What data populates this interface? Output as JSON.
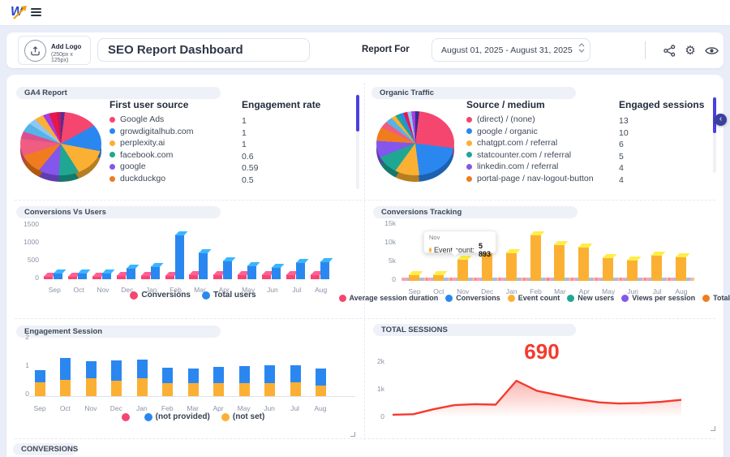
{
  "topbar": {
    "logo_letter": "W"
  },
  "header": {
    "add_logo": {
      "line1": "Add Logo",
      "line2": "(250px x 125px)"
    },
    "title_value": "SEO Report Dashboard",
    "report_for_label": "Report For",
    "date_range_value": "August 01, 2025 - August 31, 2025"
  },
  "theme": {
    "background": "#e9edf8",
    "accent_indigo": "#4a3fe0",
    "collapse_button": "#3b3f9d",
    "red_accent": "#f43b2e"
  },
  "panels": {
    "ga4": {
      "title": "GA4 Report",
      "col1_header": "First user source",
      "col2_header": "Engagement rate",
      "rows": [
        {
          "label": "Google Ads",
          "value": "1",
          "color": "#f5466f"
        },
        {
          "label": "growdigitalhub.com",
          "value": "1",
          "color": "#2b87f0"
        },
        {
          "label": "perplexity.ai",
          "value": "1",
          "color": "#fbb034"
        },
        {
          "label": "facebook.com",
          "value": "0.6",
          "color": "#1fa793"
        },
        {
          "label": "google",
          "value": "0.59",
          "color": "#8456ec"
        },
        {
          "label": "duckduckgo",
          "value": "0.5",
          "color": "#f07c1f"
        }
      ]
    },
    "organic": {
      "title": "Organic Traffic",
      "col1_header": "Source / medium",
      "col2_header": "Engaged sessions",
      "rows": [
        {
          "label": "(direct) / (none)",
          "value": "13",
          "color": "#f5466f"
        },
        {
          "label": "google / organic",
          "value": "10",
          "color": "#2b87f0"
        },
        {
          "label": "chatgpt.com / referral",
          "value": "6",
          "color": "#fbb034"
        },
        {
          "label": "statcounter.com / referral",
          "value": "5",
          "color": "#1fa793"
        },
        {
          "label": "linkedin.com / referral",
          "value": "4",
          "color": "#8456ec"
        },
        {
          "label": "portal-page / nav-logout-button",
          "value": "4",
          "color": "#f07c1f"
        }
      ]
    },
    "conversions_bottom": {
      "title": "CONVERSIONS"
    }
  },
  "chart_data": [
    {
      "id": "ga4_pie",
      "type": "pie",
      "title": "GA4 Report",
      "legend": [
        "Google Ads",
        "growdigitalhub.com",
        "perplexity.ai",
        "facebook.com",
        "google",
        "duckduckgo"
      ],
      "slices": [
        {
          "color": "#5b2d90",
          "pct": 2
        },
        {
          "color": "#f5466f",
          "pct": 15
        },
        {
          "color": "#2b87f0",
          "pct": 11
        },
        {
          "color": "#fbb034",
          "pct": 13
        },
        {
          "color": "#1fa793",
          "pct": 10
        },
        {
          "color": "#8456ec",
          "pct": 10
        },
        {
          "color": "#f07c1f",
          "pct": 9
        },
        {
          "color": "#ef5d80",
          "pct": 7
        },
        {
          "color": "#d94f8f",
          "pct": 3
        },
        {
          "color": "#56b3e8",
          "pct": 4
        },
        {
          "color": "#8fc7f2",
          "pct": 3
        },
        {
          "color": "#fbb034",
          "pct": 4
        },
        {
          "color": "#a43ee0",
          "pct": 3
        },
        {
          "color": "#e8174b",
          "pct": 4
        },
        {
          "color": "#c2185b",
          "pct": 2
        }
      ]
    },
    {
      "id": "organic_pie",
      "type": "pie",
      "title": "Organic Traffic",
      "legend": [
        "(direct) / (none)",
        "google / organic",
        "chatgpt.com / referral",
        "statcounter.com / referral",
        "linkedin.com / referral",
        "portal-page / nav-logout-button"
      ],
      "slices": [
        {
          "color": "#3b2a8f",
          "pct": 2
        },
        {
          "color": "#f5466f",
          "pct": 25
        },
        {
          "color": "#2b87f0",
          "pct": 21
        },
        {
          "color": "#fbb034",
          "pct": 12
        },
        {
          "color": "#1fa793",
          "pct": 9
        },
        {
          "color": "#8456ec",
          "pct": 7
        },
        {
          "color": "#f07c1f",
          "pct": 6
        },
        {
          "color": "#ef5d80",
          "pct": 3
        },
        {
          "color": "#56b3e8",
          "pct": 3
        },
        {
          "color": "#fbb034",
          "pct": 2
        },
        {
          "color": "#1fa793",
          "pct": 2
        },
        {
          "color": "#2b87f0",
          "pct": 2
        },
        {
          "color": "#e8174b",
          "pct": 2
        },
        {
          "color": "#8fc7f2",
          "pct": 2
        },
        {
          "color": "#a43ee0",
          "pct": 2
        }
      ]
    },
    {
      "id": "conversions_vs_users",
      "type": "bar",
      "title": "Conversions Vs Users",
      "categories": [
        "Sep",
        "Oct",
        "Nov",
        "Dec",
        "Jan",
        "Feb",
        "Mar",
        "Apr",
        "May",
        "Jun",
        "Jul",
        "Aug"
      ],
      "series": [
        {
          "name": "Conversions",
          "color": "#f5466f",
          "values": [
            95,
            95,
            90,
            100,
            105,
            110,
            120,
            125,
            125,
            135,
            130,
            125
          ]
        },
        {
          "name": "Total users",
          "color": "#2b87f0",
          "values": [
            180,
            170,
            165,
            295,
            345,
            1190,
            715,
            490,
            360,
            325,
            455,
            470
          ]
        }
      ],
      "ylim": [
        0,
        1500
      ],
      "yticks": [
        "0",
        "500",
        "1000",
        "1500"
      ],
      "legend_position": "bottom",
      "grid": false
    },
    {
      "id": "conversions_tracking",
      "type": "bar",
      "title": "Conversions Tracking",
      "categories": [
        "Sep",
        "Oct",
        "Nov",
        "Dec",
        "Jan",
        "Feb",
        "Mar",
        "Apr",
        "May",
        "Jun",
        "Jul",
        "Aug"
      ],
      "series": [
        {
          "name": "Average session duration",
          "color": "#f5466f",
          "flat_value": 300
        },
        {
          "name": "Conversions",
          "color": "#2b87f0",
          "flat_value": 120
        },
        {
          "name": "Event count",
          "color": "#fbb034",
          "values": [
            1800,
            1750,
            5893,
            11600,
            7600,
            12300,
            9800,
            9100,
            6400,
            5600,
            7000,
            6600
          ]
        },
        {
          "name": "New users",
          "color": "#1fa793",
          "flat_value": 420
        },
        {
          "name": "Views per session",
          "color": "#8456ec",
          "flat_value": 60
        },
        {
          "name": "Total users",
          "color": "#f07c1f",
          "flat_value": 520
        }
      ],
      "ylim": [
        0,
        15000
      ],
      "yticks": [
        "0",
        "5k",
        "10k",
        "15k"
      ],
      "legend_position": "bottom",
      "grid": false,
      "tooltip": {
        "month": "Nov",
        "series_label": "Event count:",
        "value": "5 893",
        "color": "#fbb034"
      }
    },
    {
      "id": "engagement_session",
      "type": "stacked-bar",
      "title": "Engagement Session",
      "categories": [
        "Sep",
        "Oct",
        "Nov",
        "Dec",
        "Jan",
        "Feb",
        "Mar",
        "Apr",
        "May",
        "Jun",
        "Jul",
        "Aug"
      ],
      "series": [
        {
          "name": "(not set)",
          "color": "#fbb034",
          "values": [
            0.5,
            0.57,
            0.62,
            0.53,
            0.63,
            0.46,
            0.46,
            0.47,
            0.45,
            0.46,
            0.48,
            0.38
          ]
        },
        {
          "name": "(not provided)",
          "color": "#2b87f0",
          "values": [
            0.41,
            0.78,
            0.6,
            0.74,
            0.65,
            0.54,
            0.5,
            0.57,
            0.6,
            0.64,
            0.62,
            0.59
          ]
        }
      ],
      "legend": [
        {
          "label": "",
          "color": "#f5466f"
        },
        {
          "label": "(not provided)",
          "color": "#2b87f0"
        },
        {
          "label": "(not set)",
          "color": "#fbb034"
        }
      ],
      "ylim": [
        0,
        2
      ],
      "yticks": [
        "0",
        "1",
        "2"
      ],
      "legend_position": "bottom",
      "grid": false
    },
    {
      "id": "total_sessions",
      "type": "area",
      "title": "TOTAL SESSIONS",
      "big_value": "690",
      "color": "#f43b2e",
      "values": [
        100,
        120,
        320,
        480,
        520,
        500,
        1450,
        1050,
        880,
        720,
        590,
        545,
        560,
        610,
        690
      ],
      "ylim": [
        0,
        2000
      ],
      "yticks": [
        "0",
        "1k",
        "2k"
      ],
      "grid": false
    }
  ]
}
